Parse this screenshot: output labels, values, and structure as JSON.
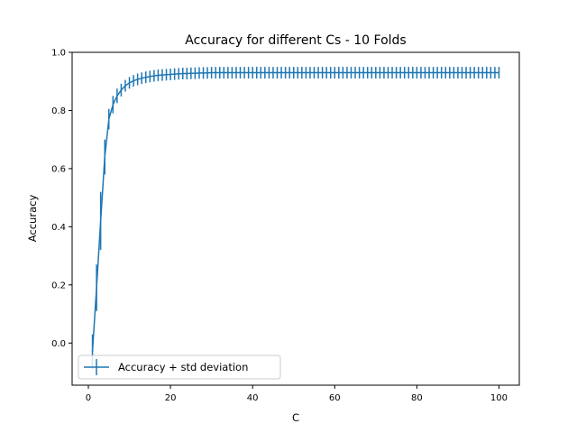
{
  "chart_data": {
    "type": "line",
    "title": "Accuracy for different Cs - 10 Folds",
    "xlabel": "C",
    "ylabel": "Accuracy",
    "xlim": [
      -3.95,
      104.95
    ],
    "ylim": [
      -0.145,
      1.0
    ],
    "xticks": [
      0,
      20,
      40,
      60,
      80,
      100
    ],
    "yticks": [
      0.0,
      0.2,
      0.4,
      0.6,
      0.8,
      1.0
    ],
    "xtick_labels": [
      "0",
      "20",
      "40",
      "60",
      "80",
      "100"
    ],
    "ytick_labels": [
      "0.0",
      "0.2",
      "0.4",
      "0.6",
      "0.8",
      "1.0"
    ],
    "grid": false,
    "legend_position": "lower-left",
    "series": [
      {
        "name": "Accuracy + std deviation",
        "color": "#1f77b4",
        "marker": "errorbar",
        "x": [
          1,
          2,
          3,
          4,
          5,
          6,
          7,
          8,
          9,
          10,
          11,
          12,
          13,
          14,
          15,
          16,
          17,
          18,
          19,
          20,
          21,
          22,
          23,
          24,
          25,
          26,
          27,
          28,
          29,
          30,
          31,
          32,
          33,
          34,
          35,
          36,
          37,
          38,
          39,
          40,
          41,
          42,
          43,
          44,
          45,
          46,
          47,
          48,
          49,
          50,
          51,
          52,
          53,
          54,
          55,
          56,
          57,
          58,
          59,
          60,
          61,
          62,
          63,
          64,
          65,
          66,
          67,
          68,
          69,
          70,
          71,
          72,
          73,
          74,
          75,
          76,
          77,
          78,
          79,
          80,
          81,
          82,
          83,
          84,
          85,
          86,
          87,
          88,
          89,
          90,
          91,
          92,
          93,
          94,
          95,
          96,
          97,
          98,
          99,
          100
        ],
        "y": [
          -0.03,
          0.19,
          0.42,
          0.64,
          0.77,
          0.82,
          0.85,
          0.87,
          0.885,
          0.895,
          0.902,
          0.907,
          0.911,
          0.914,
          0.917,
          0.919,
          0.921,
          0.922,
          0.923,
          0.924,
          0.925,
          0.926,
          0.927,
          0.927,
          0.928,
          0.928,
          0.929,
          0.929,
          0.929,
          0.93,
          0.93,
          0.93,
          0.93,
          0.93,
          0.93,
          0.93,
          0.93,
          0.93,
          0.93,
          0.93,
          0.93,
          0.93,
          0.93,
          0.93,
          0.93,
          0.93,
          0.93,
          0.93,
          0.93,
          0.93,
          0.93,
          0.93,
          0.93,
          0.93,
          0.93,
          0.93,
          0.93,
          0.93,
          0.93,
          0.93,
          0.93,
          0.93,
          0.93,
          0.93,
          0.93,
          0.93,
          0.93,
          0.93,
          0.93,
          0.93,
          0.93,
          0.93,
          0.93,
          0.93,
          0.93,
          0.93,
          0.93,
          0.93,
          0.93,
          0.93,
          0.93,
          0.93,
          0.93,
          0.93,
          0.93,
          0.93,
          0.93,
          0.93,
          0.93,
          0.93,
          0.93,
          0.93,
          0.93,
          0.93,
          0.93,
          0.93,
          0.93,
          0.93,
          0.93,
          0.93
        ],
        "yerr": [
          0.06,
          0.08,
          0.1,
          0.06,
          0.035,
          0.03,
          0.025,
          0.022,
          0.02,
          0.02,
          0.02,
          0.02,
          0.02,
          0.02,
          0.02,
          0.02,
          0.02,
          0.02,
          0.02,
          0.02,
          0.02,
          0.02,
          0.02,
          0.02,
          0.02,
          0.02,
          0.02,
          0.02,
          0.02,
          0.02,
          0.02,
          0.02,
          0.02,
          0.02,
          0.02,
          0.02,
          0.02,
          0.02,
          0.02,
          0.02,
          0.02,
          0.02,
          0.02,
          0.02,
          0.02,
          0.02,
          0.02,
          0.02,
          0.02,
          0.02,
          0.02,
          0.02,
          0.02,
          0.02,
          0.02,
          0.02,
          0.02,
          0.02,
          0.02,
          0.02,
          0.02,
          0.02,
          0.02,
          0.02,
          0.02,
          0.02,
          0.02,
          0.02,
          0.02,
          0.02,
          0.02,
          0.02,
          0.02,
          0.02,
          0.02,
          0.02,
          0.02,
          0.02,
          0.02,
          0.02,
          0.02,
          0.02,
          0.02,
          0.02,
          0.02,
          0.02,
          0.02,
          0.02,
          0.02,
          0.02,
          0.02,
          0.02,
          0.02,
          0.02,
          0.02,
          0.02,
          0.02,
          0.02,
          0.02,
          0.02
        ]
      }
    ]
  }
}
